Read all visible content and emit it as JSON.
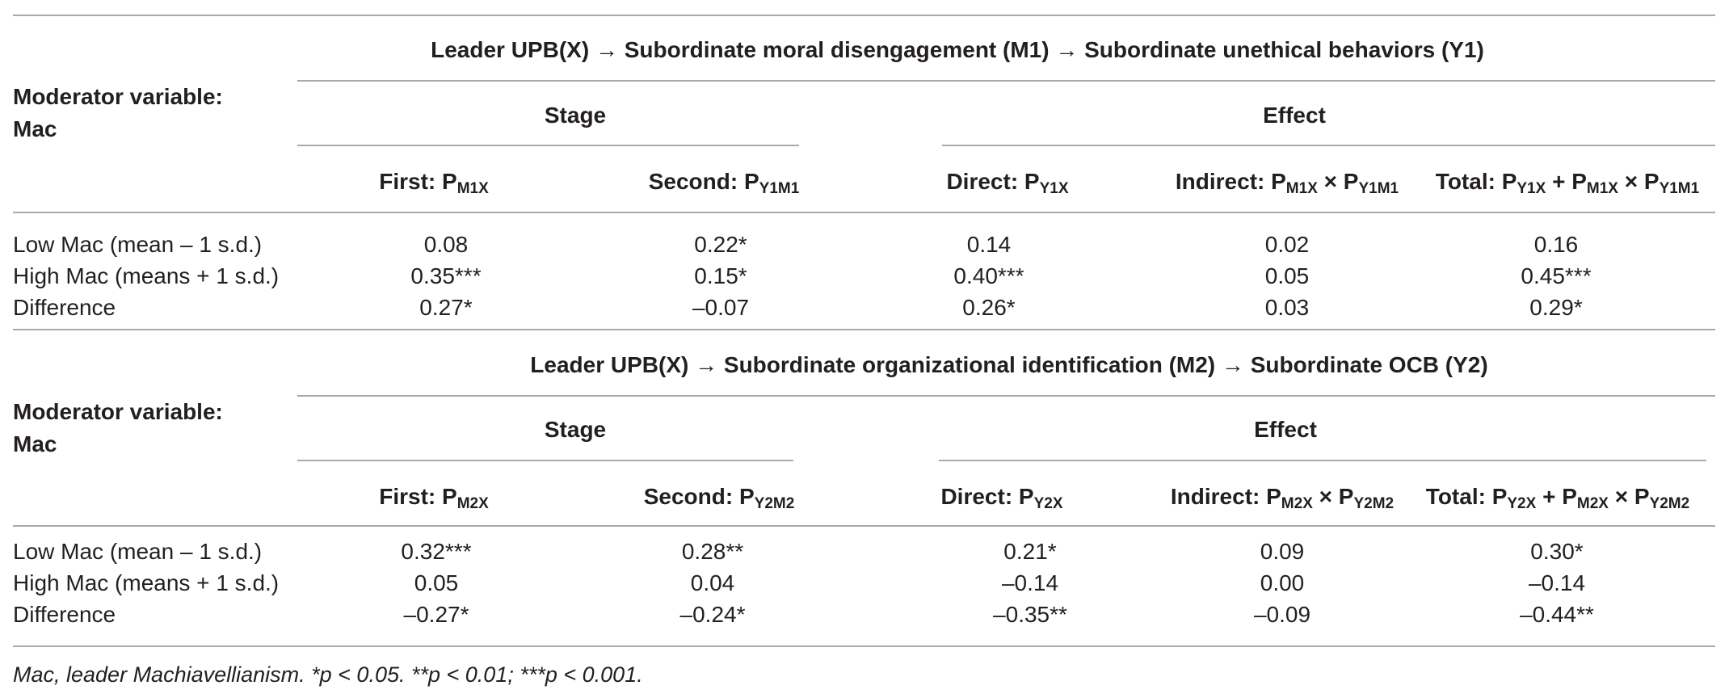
{
  "panels": [
    {
      "title": "Leader UPB(X) → Subordinate moral disengagement (M1) → Subordinate unethical behaviors (Y1)",
      "moderator": [
        "Moderator variable:",
        "Mac"
      ],
      "group_headers": [
        "Stage",
        "Effect"
      ],
      "columns": [
        {
          "parts": [
            {
              "t": "First: P"
            },
            {
              "s": "M1X"
            }
          ]
        },
        {
          "parts": [
            {
              "t": "Second: P"
            },
            {
              "s": "Y1M1"
            }
          ]
        },
        {
          "parts": [
            {
              "t": "Direct: P"
            },
            {
              "s": "Y1X"
            }
          ]
        },
        {
          "parts": [
            {
              "t": "Indirect: P"
            },
            {
              "s": "M1X"
            },
            {
              "t": " × P"
            },
            {
              "s": "Y1M1"
            }
          ]
        },
        {
          "parts": [
            {
              "t": "Total: P"
            },
            {
              "s": "Y1X"
            },
            {
              "t": " + P"
            },
            {
              "s": "M1X"
            },
            {
              "t": " × P"
            },
            {
              "s": "Y1M1"
            }
          ]
        }
      ],
      "rows": [
        {
          "label": "Low Mac (mean – 1 s.d.)",
          "values": [
            "0.08",
            "0.22*",
            "0.14",
            "0.02",
            "0.16"
          ]
        },
        {
          "label": "High Mac (means + 1 s.d.)",
          "values": [
            "0.35***",
            "0.15*",
            "0.40***",
            "0.05",
            "0.45***"
          ]
        },
        {
          "label": "Difference",
          "values": [
            "0.27*",
            "–0.07",
            "0.26*",
            "0.03",
            "0.29*"
          ]
        }
      ]
    },
    {
      "title": "Leader UPB(X) → Subordinate organizational identification (M2) → Subordinate OCB (Y2)",
      "moderator": [
        "Moderator variable:",
        "Mac"
      ],
      "group_headers": [
        "Stage",
        "Effect"
      ],
      "columns": [
        {
          "parts": [
            {
              "t": "First: P"
            },
            {
              "s": "M2X"
            }
          ]
        },
        {
          "parts": [
            {
              "t": "Second: P"
            },
            {
              "s": "Y2M2"
            }
          ]
        },
        {
          "parts": [
            {
              "t": "Direct: P"
            },
            {
              "s": "Y2X"
            }
          ]
        },
        {
          "parts": [
            {
              "t": "Indirect: P"
            },
            {
              "s": "M2X"
            },
            {
              "t": " × P"
            },
            {
              "s": "Y2M2"
            }
          ]
        },
        {
          "parts": [
            {
              "t": "Total: P"
            },
            {
              "s": "Y2X"
            },
            {
              "t": " + P"
            },
            {
              "s": "M2X"
            },
            {
              "t": " × P"
            },
            {
              "s": "Y2M2"
            }
          ]
        }
      ],
      "rows": [
        {
          "label": "Low Mac (mean – 1 s.d.)",
          "values": [
            "0.32***",
            "0.28**",
            "0.21*",
            "0.09",
            "0.30*"
          ]
        },
        {
          "label": "High Mac (means + 1 s.d.)",
          "values": [
            "0.05",
            "0.04",
            "–0.14",
            "0.00",
            "–0.14"
          ]
        },
        {
          "label": "Difference",
          "values": [
            "–0.27*",
            "–0.24*",
            "–0.35**",
            "–0.09",
            "–0.44**"
          ]
        }
      ]
    }
  ],
  "footnote": "Mac, leader Machiavellianism. *p < 0.05. **p < 0.01; ***p < 0.001."
}
